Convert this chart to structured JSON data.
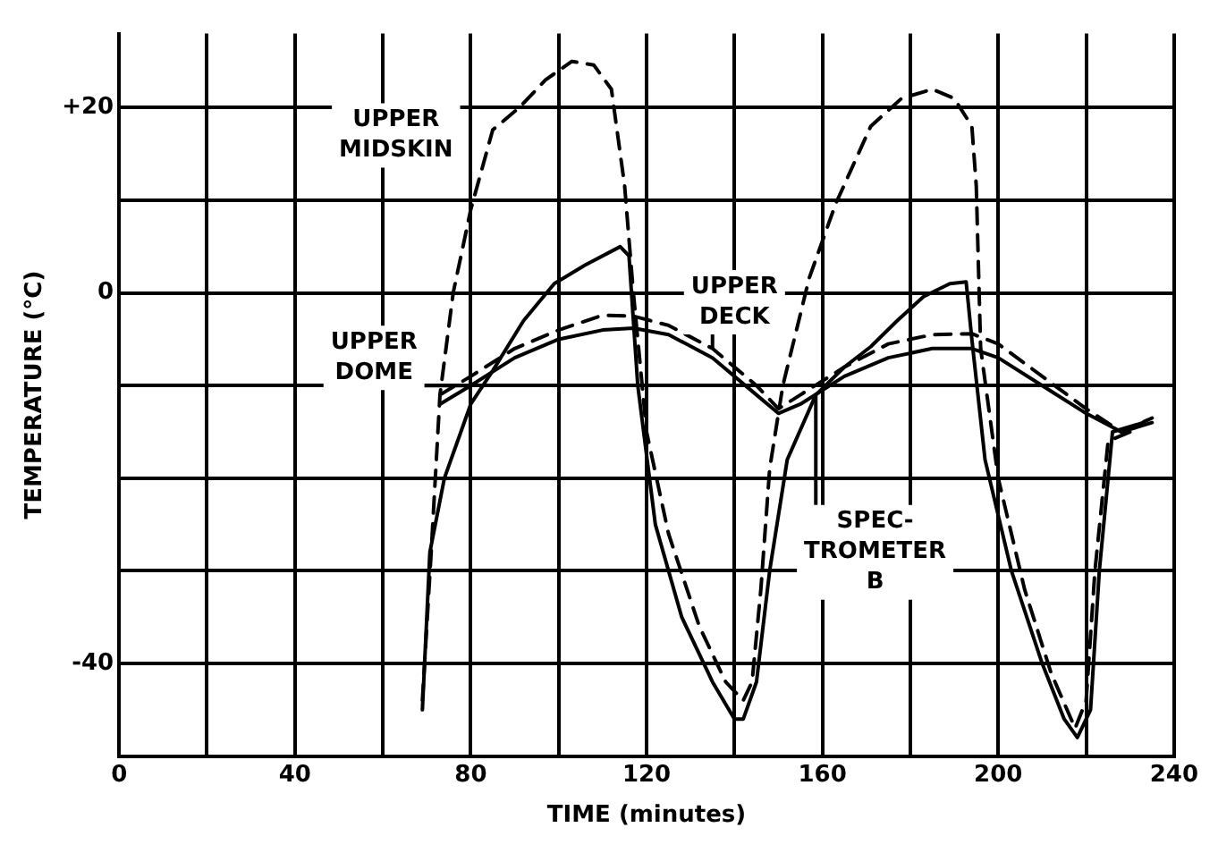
{
  "chart_data": {
    "type": "line",
    "xlabel": "TIME (minutes)",
    "ylabel": "TEMPERATURE (°C)",
    "xlim": [
      0,
      240
    ],
    "ylim": [
      -50,
      28
    ],
    "xticks": [
      0,
      {
        "value": 20,
        "label": null
      },
      40,
      {
        "value": 60,
        "label": null
      },
      80,
      {
        "value": 100,
        "label": null
      },
      120,
      {
        "value": 140,
        "label": null
      },
      160,
      {
        "value": 180,
        "label": null
      },
      200,
      {
        "value": 220,
        "label": null
      },
      240
    ],
    "yticks": [
      {
        "value": -50,
        "label": null
      },
      -40,
      {
        "value": -30,
        "label": null
      },
      {
        "value": -20,
        "label": null
      },
      {
        "value": -10,
        "label": null
      },
      0,
      {
        "value": 10,
        "label": null
      },
      {
        "value": 20,
        "label": "+20"
      }
    ],
    "grid": true,
    "legend": false,
    "marker": "none",
    "series": [
      {
        "name": "UPPER MIDSKIN",
        "color": "#000000",
        "line_style": "dashed",
        "x": [
          69,
          71,
          73,
          76,
          80,
          85,
          91,
          97,
          103,
          108,
          112,
          115,
          117,
          120,
          125,
          132,
          138,
          142,
          144,
          146,
          148,
          151,
          157,
          163,
          171,
          178,
          185,
          190,
          194,
          195,
          196,
          200,
          206,
          212,
          217.5,
          220,
          222,
          225,
          230,
          233
        ],
        "values": [
          -44,
          -28,
          -11,
          0,
          9,
          17.6,
          20,
          23,
          25,
          24.6,
          22,
          11.6,
          0,
          -15,
          -26,
          -36,
          -42,
          -44,
          -42,
          -32,
          -19,
          -10,
          1.6,
          9.6,
          18,
          21,
          22,
          21,
          18,
          11.6,
          -6,
          -20,
          -32,
          -41,
          -47,
          -44,
          -30,
          -16,
          -15,
          -14
        ]
      },
      {
        "name": "UPPER DOME",
        "color": "#000000",
        "line_style": "solid",
        "x": [
          73,
          80,
          90,
          100,
          110,
          117,
          125,
          135,
          145,
          150,
          155,
          165,
          175,
          185,
          194,
          200,
          210,
          220,
          228,
          235
        ],
        "values": [
          -12,
          -10,
          -7,
          -5,
          -4,
          -3.8,
          -4.5,
          -7,
          -11,
          -13,
          -12,
          -9,
          -7,
          -6,
          -6,
          -7,
          -10,
          -13,
          -15,
          -14
        ]
      },
      {
        "name": "UPPER DECK",
        "color": "#000000",
        "line_style": "dashed",
        "x": [
          73,
          80,
          90,
          100,
          110,
          117,
          125,
          135,
          145,
          150,
          155,
          165,
          175,
          185,
          194,
          200,
          210,
          220,
          228,
          235
        ],
        "values": [
          -11,
          -9,
          -6,
          -4,
          -2.4,
          -2.5,
          -3.5,
          -6,
          -10,
          -12.5,
          -11,
          -8,
          -5.5,
          -4.5,
          -4.4,
          -5.5,
          -9,
          -12.5,
          -15,
          -13.5
        ]
      },
      {
        "name": "SPEC-TROMETER B",
        "color": "#000000",
        "line_style": "solid",
        "x": [
          69,
          70.7,
          74,
          80,
          85,
          92,
          99,
          106,
          114,
          116,
          118,
          122,
          128,
          135,
          140,
          142,
          145,
          148,
          152,
          158.5,
          165,
          171,
          177,
          183,
          189,
          192.7,
          194,
          197,
          203,
          210,
          215,
          218,
          221,
          223,
          226,
          233
        ],
        "values": [
          -45,
          -28,
          -20,
          -12,
          -8.4,
          -3,
          1,
          3,
          5,
          4,
          -10,
          -25,
          -35,
          -42,
          -46,
          -46,
          -42,
          -30,
          -18,
          -11,
          -8,
          -5.8,
          -3,
          -0.4,
          1,
          1.2,
          -5,
          -18,
          -30,
          -40,
          -46,
          -48,
          -45,
          -30,
          -15,
          -14
        ]
      }
    ]
  }
}
